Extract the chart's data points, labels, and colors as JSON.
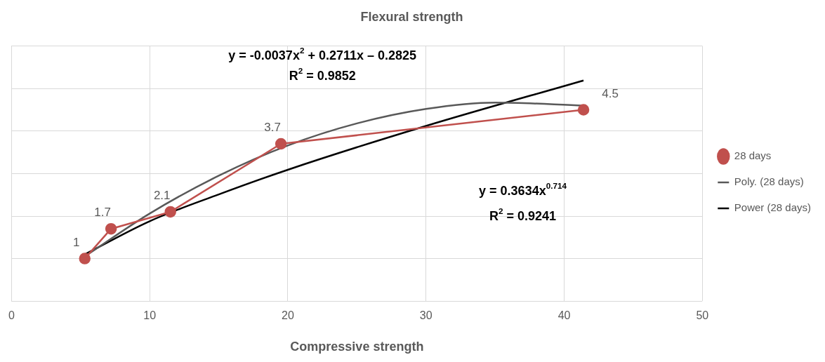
{
  "chart_data": {
    "type": "line",
    "title": "Flexural strength",
    "xlabel": "Compressive strength",
    "xlim": [
      0,
      50
    ],
    "xticks": [
      0,
      10,
      20,
      30,
      40,
      50
    ],
    "ylim": [
      0,
      6
    ],
    "yticks": [
      {
        "value": 0,
        "label": null
      },
      {
        "value": 1,
        "label": null
      },
      {
        "value": 2,
        "label": null
      },
      {
        "value": 3,
        "label": null
      },
      {
        "value": 4,
        "label": null
      },
      {
        "value": 5,
        "label": null
      },
      {
        "value": 6,
        "label": null
      }
    ],
    "tick_labels": "x",
    "grid": true,
    "legend": "right",
    "marker": "circle",
    "series": [
      {
        "name": "28 days",
        "color": "#c0504d",
        "x": [
          5.3,
          7.2,
          11.5,
          19.5,
          41.4
        ],
        "values": [
          1,
          1.7,
          2.1,
          3.7,
          4.5
        ],
        "value_labels": [
          "1",
          "1.7",
          "2.1",
          "3.7",
          "4.5"
        ]
      },
      {
        "name": "Poly. (28 days)",
        "type": "line",
        "marker": "none",
        "color": "#595959",
        "x": [
          5.3,
          10,
          15,
          20,
          25,
          30,
          35,
          41.4
        ],
        "values": [
          1.05,
          2.06,
          2.95,
          3.66,
          4.18,
          4.52,
          4.67,
          4.6
        ]
      },
      {
        "name": "Power (28 days)",
        "type": "line",
        "marker": "none",
        "color": "#000000",
        "x": [
          5.3,
          10,
          15,
          20,
          30,
          41.4
        ],
        "values": [
          1.1,
          1.88,
          2.51,
          3.09,
          4.12,
          5.19
        ]
      }
    ],
    "annotations": [
      "y = -0.0037x$^{2}$ + 0.2711x – 0.2825",
      "R$^{2}$ = 0.9852",
      "y = 0.3634x$^{0.714}$",
      "R$^{2}$ = 0.9241"
    ]
  }
}
